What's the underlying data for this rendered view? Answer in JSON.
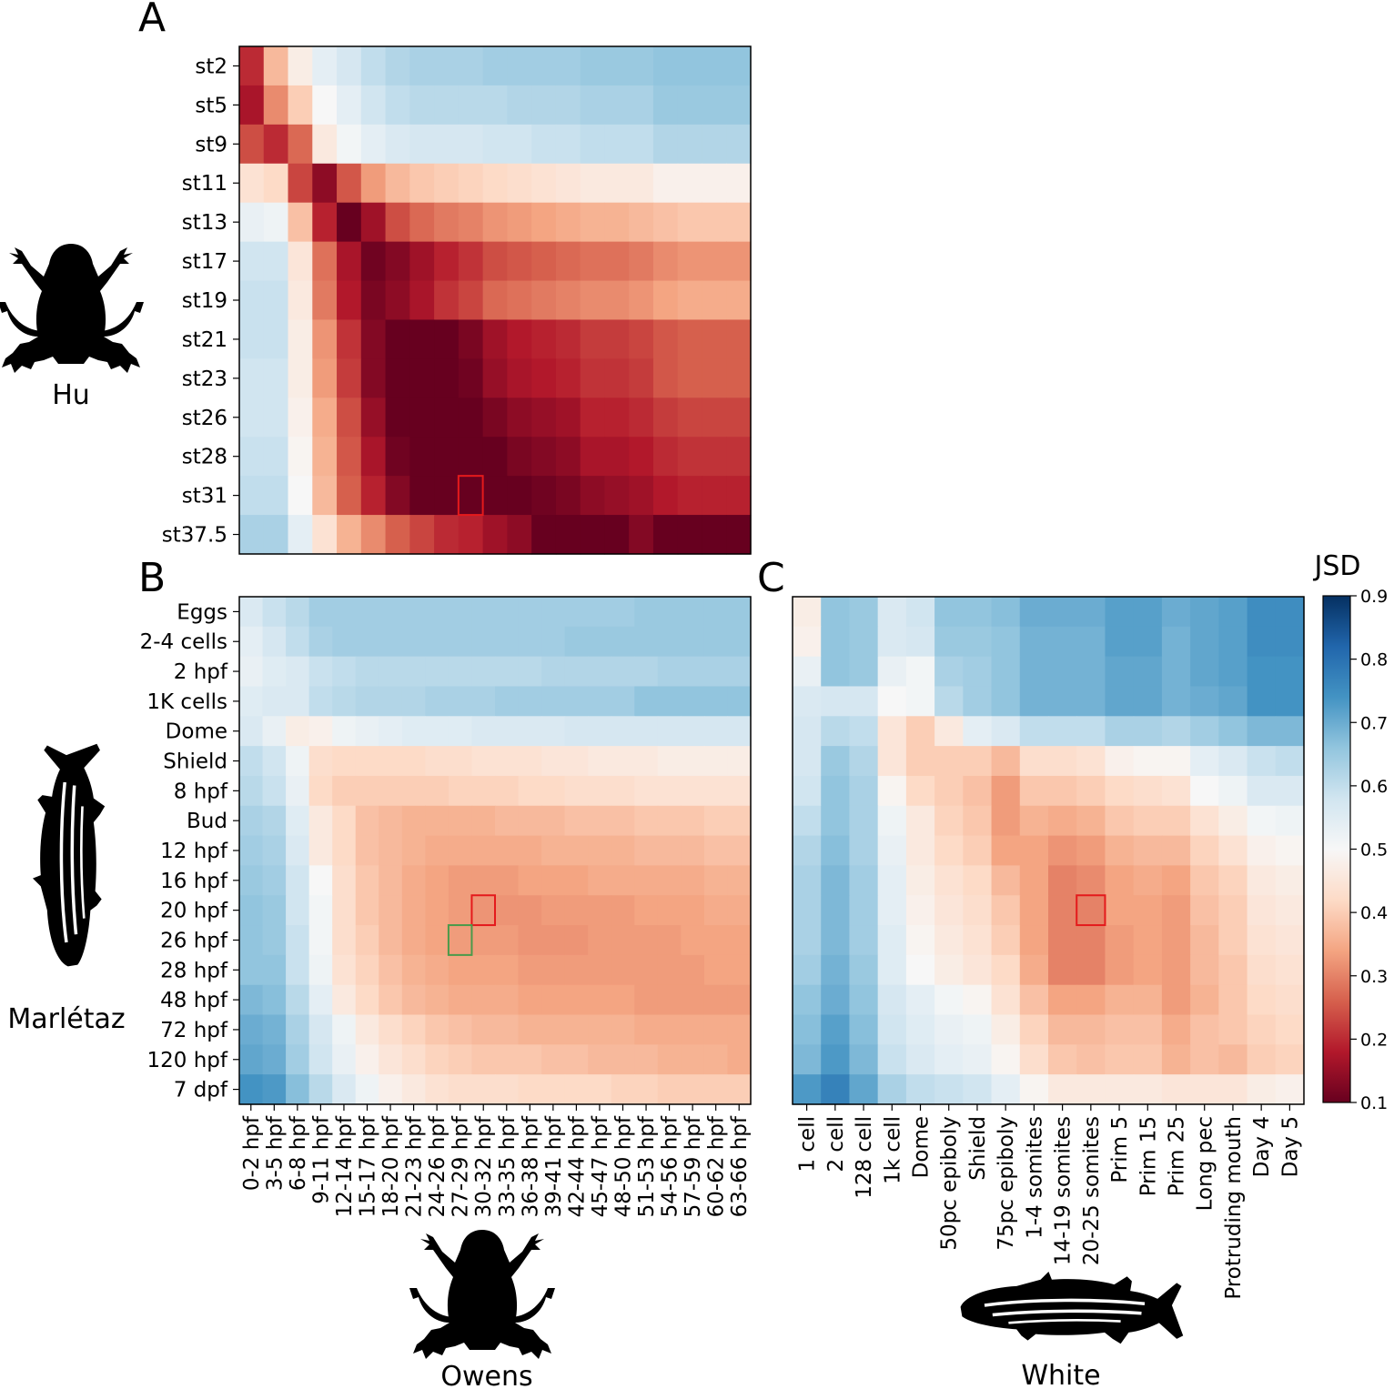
{
  "colors": {
    "scale": [
      "#67001f",
      "#b2182b",
      "#d6604d",
      "#f4a582",
      "#fddbc7",
      "#f7f7f7",
      "#d1e5f0",
      "#92c5de",
      "#4393c3",
      "#2166ac",
      "#053061"
    ],
    "highlight_red": "#e41a1c",
    "highlight_green": "#4a9a4a",
    "silhouette": "#000000"
  },
  "icons": [
    "frog-silhouette-icon",
    "zebrafish-silhouette-icon"
  ],
  "chart_data": [
    {
      "type": "heatmap",
      "panel_label": "A",
      "source_label": "Hu",
      "rows": [
        "st2",
        "st5",
        "st9",
        "st11",
        "st13",
        "st17",
        "st19",
        "st21",
        "st23",
        "st26",
        "st28",
        "st31",
        "st37.5"
      ],
      "columns_count": 21,
      "values": [
        [
          0.2,
          0.37,
          0.47,
          0.54,
          0.57,
          0.6,
          0.62,
          0.63,
          0.63,
          0.63,
          0.64,
          0.64,
          0.64,
          0.64,
          0.65,
          0.65,
          0.65,
          0.66,
          0.66,
          0.66,
          0.66
        ],
        [
          0.17,
          0.31,
          0.4,
          0.5,
          0.54,
          0.58,
          0.6,
          0.61,
          0.61,
          0.61,
          0.61,
          0.62,
          0.62,
          0.62,
          0.63,
          0.63,
          0.63,
          0.65,
          0.65,
          0.65,
          0.65
        ],
        [
          0.24,
          0.2,
          0.27,
          0.46,
          0.51,
          0.54,
          0.56,
          0.57,
          0.57,
          0.57,
          0.58,
          0.58,
          0.59,
          0.59,
          0.6,
          0.6,
          0.6,
          0.62,
          0.62,
          0.62,
          0.62
        ],
        [
          0.44,
          0.42,
          0.23,
          0.14,
          0.25,
          0.33,
          0.37,
          0.39,
          0.4,
          0.41,
          0.42,
          0.43,
          0.44,
          0.45,
          0.46,
          0.46,
          0.46,
          0.48,
          0.48,
          0.48,
          0.48
        ],
        [
          0.53,
          0.52,
          0.38,
          0.19,
          0.1,
          0.16,
          0.24,
          0.27,
          0.29,
          0.3,
          0.32,
          0.33,
          0.34,
          0.35,
          0.36,
          0.36,
          0.37,
          0.38,
          0.39,
          0.39,
          0.39
        ],
        [
          0.58,
          0.58,
          0.45,
          0.28,
          0.17,
          0.11,
          0.13,
          0.16,
          0.19,
          0.21,
          0.24,
          0.25,
          0.26,
          0.27,
          0.28,
          0.28,
          0.29,
          0.31,
          0.32,
          0.32,
          0.32
        ],
        [
          0.59,
          0.59,
          0.46,
          0.29,
          0.18,
          0.12,
          0.14,
          0.17,
          0.21,
          0.23,
          0.27,
          0.28,
          0.29,
          0.3,
          0.31,
          0.31,
          0.32,
          0.34,
          0.35,
          0.35,
          0.35
        ],
        [
          0.59,
          0.59,
          0.47,
          0.32,
          0.21,
          0.13,
          0.09,
          0.09,
          0.1,
          0.12,
          0.16,
          0.18,
          0.19,
          0.2,
          0.22,
          0.22,
          0.23,
          0.25,
          0.26,
          0.26,
          0.26
        ],
        [
          0.58,
          0.58,
          0.47,
          0.33,
          0.22,
          0.13,
          0.09,
          0.09,
          0.09,
          0.11,
          0.15,
          0.17,
          0.18,
          0.19,
          0.21,
          0.21,
          0.22,
          0.25,
          0.26,
          0.26,
          0.26
        ],
        [
          0.58,
          0.58,
          0.48,
          0.35,
          0.24,
          0.15,
          0.1,
          0.07,
          0.06,
          0.08,
          0.12,
          0.14,
          0.15,
          0.16,
          0.19,
          0.19,
          0.2,
          0.22,
          0.23,
          0.23,
          0.23
        ],
        [
          0.59,
          0.59,
          0.49,
          0.36,
          0.25,
          0.17,
          0.11,
          0.08,
          0.06,
          0.07,
          0.1,
          0.12,
          0.13,
          0.14,
          0.17,
          0.17,
          0.18,
          0.2,
          0.21,
          0.21,
          0.21
        ],
        [
          0.6,
          0.6,
          0.5,
          0.37,
          0.26,
          0.19,
          0.13,
          0.09,
          0.07,
          0.08,
          0.09,
          0.1,
          0.11,
          0.12,
          0.14,
          0.15,
          0.16,
          0.18,
          0.19,
          0.19,
          0.19
        ],
        [
          0.63,
          0.63,
          0.54,
          0.44,
          0.36,
          0.31,
          0.26,
          0.23,
          0.2,
          0.19,
          0.16,
          0.14,
          0.1,
          0.09,
          0.08,
          0.08,
          0.13,
          0.07,
          0.07,
          0.06,
          0.07
        ]
      ],
      "highlight": [
        {
          "row": 11,
          "col": 9,
          "color": "red"
        }
      ]
    },
    {
      "type": "heatmap",
      "panel_label": "B",
      "source_label": "Owens",
      "row_source_label": "Marlétaz",
      "rows": [
        "Eggs",
        "2-4 cells",
        "2 hpf",
        "1K cells",
        "Dome",
        "Shield",
        "8 hpf",
        "Bud",
        "12 hpf",
        "16 hpf",
        "20 hpf",
        "26 hpf",
        "28 hpf",
        "48 hpf",
        "72 hpf",
        "120 hpf",
        "7 dpf"
      ],
      "columns": [
        "0-2 hpf",
        "3-5 hpf",
        "6-8 hpf",
        "9-11 hpf",
        "12-14 hpf",
        "15-17 hpf",
        "18-20 hpf",
        "21-23 hpf",
        "24-26 hpf",
        "27-29 hpf",
        "30-32 hpf",
        "33-35 hpf",
        "36-38 hpf",
        "39-41 hpf",
        "42-44 hpf",
        "45-47 hpf",
        "48-50 hpf",
        "51-53 hpf",
        "54-56 hpf",
        "57-59 hpf",
        "60-62 hpf",
        "63-66 hpf"
      ],
      "values": [
        [
          0.56,
          0.59,
          0.61,
          0.64,
          0.64,
          0.64,
          0.64,
          0.64,
          0.64,
          0.64,
          0.64,
          0.64,
          0.64,
          0.64,
          0.64,
          0.64,
          0.64,
          0.65,
          0.65,
          0.65,
          0.65,
          0.65
        ],
        [
          0.54,
          0.57,
          0.6,
          0.63,
          0.64,
          0.64,
          0.64,
          0.64,
          0.64,
          0.64,
          0.64,
          0.64,
          0.64,
          0.64,
          0.65,
          0.65,
          0.65,
          0.65,
          0.65,
          0.65,
          0.65,
          0.65
        ],
        [
          0.53,
          0.55,
          0.56,
          0.59,
          0.6,
          0.61,
          0.61,
          0.61,
          0.61,
          0.61,
          0.61,
          0.61,
          0.61,
          0.62,
          0.62,
          0.62,
          0.62,
          0.62,
          0.63,
          0.63,
          0.63,
          0.63
        ],
        [
          0.55,
          0.56,
          0.56,
          0.6,
          0.61,
          0.62,
          0.62,
          0.62,
          0.63,
          0.63,
          0.63,
          0.64,
          0.64,
          0.64,
          0.64,
          0.64,
          0.64,
          0.66,
          0.66,
          0.66,
          0.66,
          0.66
        ],
        [
          0.56,
          0.53,
          0.47,
          0.48,
          0.52,
          0.53,
          0.54,
          0.55,
          0.55,
          0.55,
          0.56,
          0.56,
          0.56,
          0.56,
          0.57,
          0.57,
          0.57,
          0.57,
          0.57,
          0.57,
          0.57,
          0.57
        ],
        [
          0.6,
          0.58,
          0.52,
          0.43,
          0.42,
          0.42,
          0.42,
          0.42,
          0.43,
          0.43,
          0.44,
          0.44,
          0.44,
          0.45,
          0.45,
          0.46,
          0.46,
          0.46,
          0.47,
          0.47,
          0.47,
          0.47
        ],
        [
          0.61,
          0.59,
          0.53,
          0.42,
          0.4,
          0.4,
          0.4,
          0.4,
          0.4,
          0.41,
          0.41,
          0.41,
          0.42,
          0.42,
          0.43,
          0.43,
          0.43,
          0.44,
          0.44,
          0.44,
          0.44,
          0.44
        ],
        [
          0.63,
          0.62,
          0.55,
          0.46,
          0.42,
          0.38,
          0.37,
          0.36,
          0.36,
          0.36,
          0.36,
          0.37,
          0.37,
          0.37,
          0.38,
          0.38,
          0.38,
          0.39,
          0.39,
          0.39,
          0.4,
          0.4
        ],
        [
          0.64,
          0.63,
          0.56,
          0.46,
          0.42,
          0.38,
          0.37,
          0.36,
          0.35,
          0.35,
          0.35,
          0.35,
          0.35,
          0.36,
          0.36,
          0.36,
          0.36,
          0.37,
          0.37,
          0.37,
          0.38,
          0.38
        ],
        [
          0.65,
          0.64,
          0.58,
          0.5,
          0.43,
          0.39,
          0.37,
          0.35,
          0.34,
          0.33,
          0.33,
          0.33,
          0.34,
          0.34,
          0.34,
          0.35,
          0.35,
          0.35,
          0.35,
          0.35,
          0.36,
          0.36
        ],
        [
          0.66,
          0.65,
          0.58,
          0.51,
          0.43,
          0.39,
          0.37,
          0.35,
          0.34,
          0.33,
          0.32,
          0.32,
          0.32,
          0.33,
          0.33,
          0.33,
          0.33,
          0.34,
          0.34,
          0.34,
          0.35,
          0.35
        ],
        [
          0.66,
          0.65,
          0.59,
          0.51,
          0.43,
          0.4,
          0.37,
          0.35,
          0.34,
          0.33,
          0.33,
          0.33,
          0.32,
          0.32,
          0.32,
          0.33,
          0.33,
          0.33,
          0.33,
          0.34,
          0.34,
          0.34
        ],
        [
          0.66,
          0.66,
          0.59,
          0.52,
          0.44,
          0.41,
          0.38,
          0.36,
          0.35,
          0.34,
          0.34,
          0.34,
          0.33,
          0.33,
          0.33,
          0.33,
          0.33,
          0.33,
          0.33,
          0.33,
          0.34,
          0.34
        ],
        [
          0.68,
          0.67,
          0.61,
          0.54,
          0.46,
          0.42,
          0.39,
          0.37,
          0.36,
          0.35,
          0.35,
          0.35,
          0.34,
          0.34,
          0.34,
          0.34,
          0.34,
          0.33,
          0.33,
          0.33,
          0.33,
          0.33
        ],
        [
          0.7,
          0.69,
          0.63,
          0.57,
          0.52,
          0.46,
          0.43,
          0.41,
          0.39,
          0.38,
          0.37,
          0.37,
          0.36,
          0.36,
          0.36,
          0.36,
          0.36,
          0.35,
          0.35,
          0.35,
          0.35,
          0.35
        ],
        [
          0.71,
          0.7,
          0.64,
          0.58,
          0.53,
          0.48,
          0.45,
          0.43,
          0.41,
          0.4,
          0.39,
          0.39,
          0.39,
          0.38,
          0.38,
          0.37,
          0.37,
          0.37,
          0.36,
          0.36,
          0.36,
          0.35
        ],
        [
          0.74,
          0.73,
          0.67,
          0.61,
          0.56,
          0.52,
          0.48,
          0.46,
          0.44,
          0.43,
          0.43,
          0.43,
          0.42,
          0.42,
          0.42,
          0.42,
          0.41,
          0.41,
          0.4,
          0.4,
          0.4,
          0.4
        ]
      ],
      "highlight": [
        {
          "row": 10,
          "col": 10,
          "color": "red"
        },
        {
          "row": 11,
          "col": 9,
          "color": "green"
        }
      ]
    },
    {
      "type": "heatmap",
      "panel_label": "C",
      "source_label": "White",
      "rows_count": 17,
      "columns": [
        "1 cell",
        "2 cell",
        "128 cell",
        "1k cell",
        "Dome",
        "50pc epiboly",
        "Shield",
        "75pc epiboly",
        "1-4 somites",
        "14-19 somites",
        "20-25 somites",
        "Prim 5",
        "Prim 15",
        "Prim 25",
        "Long pec",
        "Protruding mouth",
        "Day 4",
        "Day 5"
      ],
      "values": [
        [
          0.47,
          0.66,
          0.65,
          0.56,
          0.58,
          0.66,
          0.66,
          0.67,
          0.7,
          0.7,
          0.7,
          0.72,
          0.72,
          0.7,
          0.71,
          0.72,
          0.75,
          0.75
        ],
        [
          0.48,
          0.66,
          0.65,
          0.56,
          0.57,
          0.65,
          0.65,
          0.66,
          0.69,
          0.69,
          0.69,
          0.72,
          0.72,
          0.69,
          0.71,
          0.72,
          0.75,
          0.75
        ],
        [
          0.53,
          0.66,
          0.65,
          0.53,
          0.51,
          0.63,
          0.64,
          0.66,
          0.69,
          0.69,
          0.69,
          0.71,
          0.71,
          0.69,
          0.71,
          0.72,
          0.74,
          0.74
        ],
        [
          0.56,
          0.57,
          0.57,
          0.5,
          0.51,
          0.61,
          0.64,
          0.66,
          0.69,
          0.69,
          0.69,
          0.71,
          0.71,
          0.69,
          0.7,
          0.71,
          0.74,
          0.74
        ],
        [
          0.57,
          0.61,
          0.6,
          0.45,
          0.4,
          0.46,
          0.54,
          0.56,
          0.6,
          0.6,
          0.6,
          0.63,
          0.63,
          0.62,
          0.64,
          0.66,
          0.68,
          0.68
        ],
        [
          0.57,
          0.65,
          0.62,
          0.45,
          0.4,
          0.4,
          0.4,
          0.37,
          0.43,
          0.43,
          0.44,
          0.48,
          0.49,
          0.49,
          0.54,
          0.56,
          0.59,
          0.6
        ],
        [
          0.58,
          0.66,
          0.63,
          0.49,
          0.42,
          0.4,
          0.38,
          0.33,
          0.39,
          0.39,
          0.4,
          0.42,
          0.43,
          0.44,
          0.5,
          0.52,
          0.56,
          0.56
        ],
        [
          0.6,
          0.66,
          0.63,
          0.52,
          0.46,
          0.41,
          0.39,
          0.33,
          0.36,
          0.35,
          0.36,
          0.39,
          0.4,
          0.4,
          0.44,
          0.47,
          0.51,
          0.52
        ],
        [
          0.62,
          0.67,
          0.63,
          0.53,
          0.46,
          0.42,
          0.4,
          0.34,
          0.34,
          0.32,
          0.33,
          0.36,
          0.37,
          0.37,
          0.41,
          0.44,
          0.48,
          0.49
        ],
        [
          0.63,
          0.68,
          0.64,
          0.54,
          0.47,
          0.44,
          0.42,
          0.37,
          0.34,
          0.3,
          0.31,
          0.34,
          0.35,
          0.34,
          0.39,
          0.41,
          0.46,
          0.47
        ],
        [
          0.63,
          0.68,
          0.64,
          0.54,
          0.48,
          0.45,
          0.43,
          0.39,
          0.34,
          0.3,
          0.3,
          0.34,
          0.34,
          0.33,
          0.38,
          0.4,
          0.45,
          0.46
        ],
        [
          0.63,
          0.68,
          0.64,
          0.55,
          0.49,
          0.46,
          0.44,
          0.4,
          0.34,
          0.3,
          0.3,
          0.33,
          0.34,
          0.33,
          0.37,
          0.4,
          0.44,
          0.45
        ],
        [
          0.64,
          0.69,
          0.65,
          0.55,
          0.5,
          0.47,
          0.45,
          0.42,
          0.35,
          0.3,
          0.3,
          0.33,
          0.34,
          0.33,
          0.37,
          0.39,
          0.43,
          0.44
        ],
        [
          0.66,
          0.7,
          0.66,
          0.57,
          0.54,
          0.51,
          0.49,
          0.44,
          0.38,
          0.34,
          0.34,
          0.36,
          0.36,
          0.33,
          0.36,
          0.39,
          0.42,
          0.43
        ],
        [
          0.67,
          0.72,
          0.67,
          0.58,
          0.55,
          0.53,
          0.52,
          0.47,
          0.41,
          0.37,
          0.37,
          0.38,
          0.38,
          0.35,
          0.38,
          0.39,
          0.41,
          0.42
        ],
        [
          0.68,
          0.73,
          0.68,
          0.59,
          0.56,
          0.54,
          0.53,
          0.49,
          0.43,
          0.39,
          0.38,
          0.39,
          0.39,
          0.36,
          0.38,
          0.37,
          0.4,
          0.41
        ],
        [
          0.73,
          0.77,
          0.71,
          0.63,
          0.6,
          0.59,
          0.58,
          0.54,
          0.49,
          0.46,
          0.46,
          0.46,
          0.46,
          0.45,
          0.45,
          0.45,
          0.47,
          0.48
        ]
      ],
      "highlight": [
        {
          "row": 10,
          "col": 10,
          "color": "red"
        }
      ]
    }
  ],
  "colorbar": {
    "title": "JSD",
    "min": 0.1,
    "max": 0.9,
    "ticks": [
      "0.9",
      "0.8",
      "0.7",
      "0.6",
      "0.5",
      "0.4",
      "0.3",
      "0.2",
      "0.1"
    ]
  }
}
